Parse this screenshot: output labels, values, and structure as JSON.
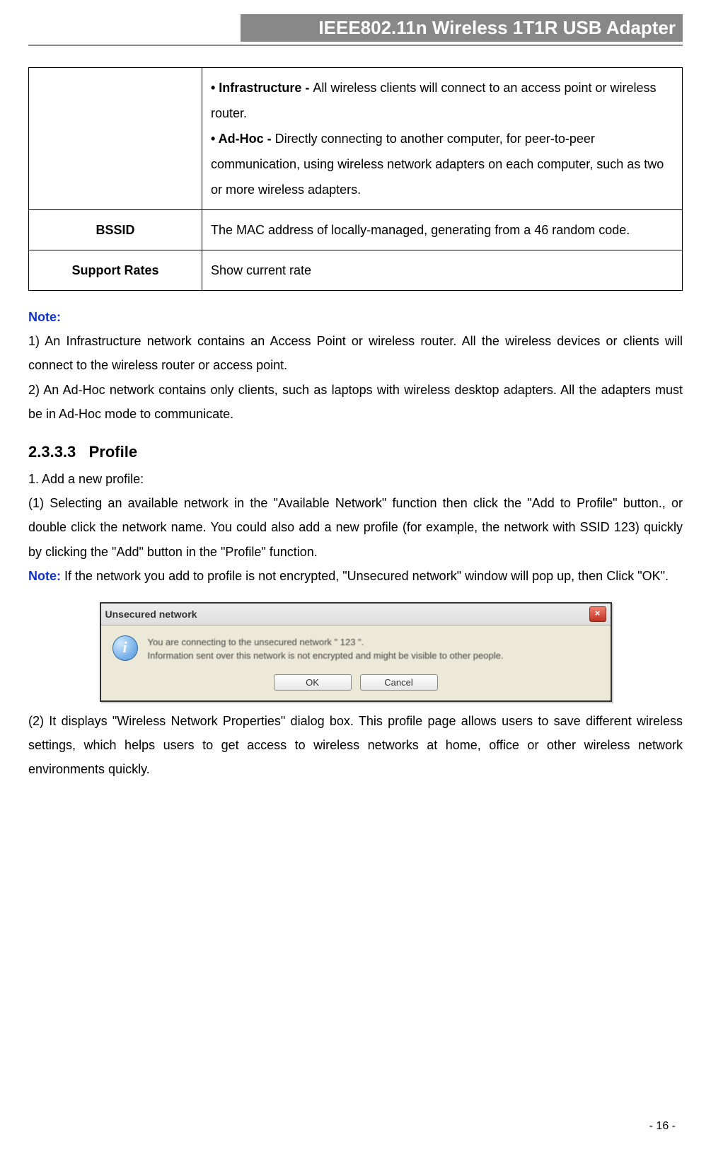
{
  "header": {
    "title": "IEEE802.11n Wireless 1T1R USB Adapter",
    "bg_color": "#888888",
    "fg_color": "#ffffff"
  },
  "table": {
    "rows": [
      {
        "label": "",
        "bullets": [
          {
            "term": "• Infrastructure - ",
            "desc": "All wireless clients will connect to an access point or wireless router."
          },
          {
            "term": "• Ad-Hoc - ",
            "desc": "Directly connecting to another computer, for peer-to-peer communication, using wireless network adapters on each computer, such as two or more wireless adapters."
          }
        ]
      },
      {
        "label": "BSSID",
        "text": "The MAC address of locally-managed, generating from a 46 random code."
      },
      {
        "label": "Support Rates",
        "text": "Show current rate"
      }
    ]
  },
  "note": {
    "label": "Note:",
    "items": [
      "1) An Infrastructure network contains an Access Point or wireless router. All the wireless devices or clients will connect to the wireless router or access point.",
      "2) An Ad-Hoc network contains only clients, such as laptops with wireless desktop adapters. All the adapters must be in Ad-Hoc mode to communicate."
    ],
    "label_color": "#1133cc"
  },
  "section": {
    "number": "2.3.3.3",
    "title": "Profile",
    "step1": "1. Add a new profile:",
    "para1": "(1) Selecting an available network in the \"Available Network\" function then click the \"Add to Profile\" button., or double click the network name. You could also add a new profile (for example, the network with SSID 123) quickly by clicking the \"Add\" button in the \"Profile\" function.",
    "note2_label": "Note:",
    "note2_text": " If the network you add to profile is not encrypted, \"Unsecured network\" window will pop up, then Click \"OK\".",
    "para2": "(2) It displays \"Wireless Network Properties\" dialog box. This profile page allows users to save different wireless settings, which helps users to get access to wireless networks at home, office or other wireless network environments quickly."
  },
  "dialog": {
    "title": "Unsecured network",
    "icon_glyph": "i",
    "msg_line1": "You are connecting to the unsecured network \" 123 \".",
    "msg_line2": "Information sent over this network is not encrypted and might be visible to other people.",
    "ok": "OK",
    "cancel": "Cancel",
    "close_glyph": "×"
  },
  "page_number": "- 16 -"
}
